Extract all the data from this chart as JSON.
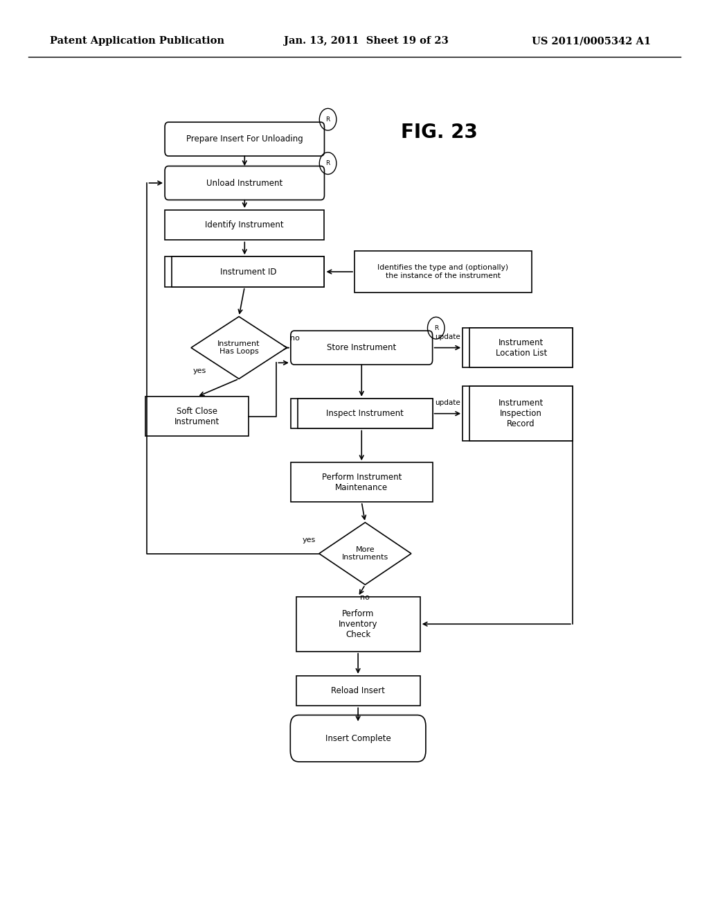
{
  "bg_color": "#ffffff",
  "header_left": "Patent Application Publication",
  "header_mid": "Jan. 13, 2011  Sheet 19 of 23",
  "header_right": "US 2011/0005342 A1",
  "fig_label": "FIG. 23",
  "header_fontsize": 10.5,
  "fig_label_fontsize": 20
}
